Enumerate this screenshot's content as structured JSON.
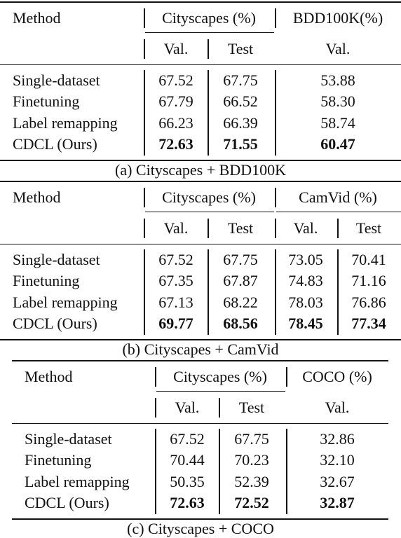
{
  "tables": [
    {
      "caption": "(a) Cityscapes + BDD100K",
      "method_header": "Method",
      "group1": "Cityscapes (%)",
      "group2": "BDD100K(%)",
      "subheaders": [
        "Val.",
        "Test",
        "Val."
      ],
      "rows": [
        {
          "method": "Single-dataset",
          "v": [
            "67.52",
            "67.75",
            "53.88"
          ]
        },
        {
          "method": "Finetuning",
          "v": [
            "67.79",
            "66.52",
            "58.30"
          ]
        },
        {
          "method": "Label remapping",
          "v": [
            "66.23",
            "66.39",
            "58.74"
          ]
        },
        {
          "method": "CDCL (Ours)",
          "v": [
            "72.63",
            "71.55",
            "60.47"
          ]
        }
      ]
    },
    {
      "caption": "(b) Cityscapes + CamVid",
      "method_header": "Method",
      "group1": "Cityscapes (%)",
      "group2": "CamVid (%)",
      "subheaders": [
        "Val.",
        "Test",
        "Val.",
        "Test"
      ],
      "rows": [
        {
          "method": "Single-dataset",
          "v": [
            "67.52",
            "67.75",
            "73.05",
            "70.41"
          ]
        },
        {
          "method": "Finetuning",
          "v": [
            "67.35",
            "67.87",
            "74.83",
            "71.16"
          ]
        },
        {
          "method": "Label remapping",
          "v": [
            "67.13",
            "68.22",
            "78.03",
            "76.86"
          ]
        },
        {
          "method": "CDCL (Ours)",
          "v": [
            "69.77",
            "68.56",
            "78.45",
            "77.34"
          ]
        }
      ]
    },
    {
      "caption": "(c) Cityscapes + COCO",
      "method_header": "Method",
      "group1": "Cityscapes (%)",
      "group2": "COCO (%)",
      "subheaders": [
        "Val.",
        "Test",
        "Val."
      ],
      "rows": [
        {
          "method": "Single-dataset",
          "v": [
            "67.52",
            "67.75",
            "32.86"
          ]
        },
        {
          "method": "Finetuning",
          "v": [
            "70.44",
            "70.23",
            "32.10"
          ]
        },
        {
          "method": "Label remapping",
          "v": [
            "50.35",
            "52.39",
            "32.67"
          ]
        },
        {
          "method": "CDCL (Ours)",
          "v": [
            "72.63",
            "72.52",
            "32.87"
          ]
        }
      ]
    }
  ]
}
